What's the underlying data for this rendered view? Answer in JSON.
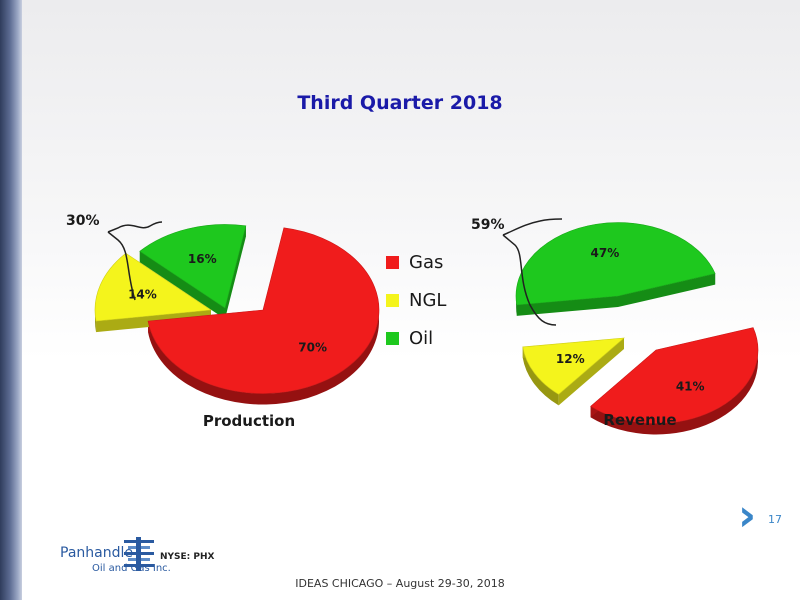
{
  "slide": {
    "title": "Third Quarter 2018",
    "page_number": "17",
    "footer": "IDEAS CHICAGO – August 29-30, 2018",
    "logo": {
      "name": "Panhandle",
      "sub": "Oil and Gas Inc.",
      "ticker": "NYSE: PHX"
    }
  },
  "colors": {
    "Gas": "#f01c1c",
    "NGL": "#f4f41c",
    "Oil": "#1ec81e",
    "title": "#1a1aa8",
    "accent": "#3a86c8"
  },
  "legend": [
    {
      "label": "Gas",
      "color": "#f01c1c"
    },
    {
      "label": "NGL",
      "color": "#f4f41c"
    },
    {
      "label": "Oil",
      "color": "#1ec81e"
    }
  ],
  "chart_data": [
    {
      "type": "pie",
      "title": "Production",
      "slices": [
        {
          "label": "Gas",
          "value": 70,
          "text": "70%"
        },
        {
          "label": "NGL",
          "value": 14,
          "text": "14%"
        },
        {
          "label": "Oil",
          "value": 16,
          "text": "16%"
        }
      ],
      "bracket_label": "30%"
    },
    {
      "type": "pie",
      "title": "Revenue",
      "slices": [
        {
          "label": "Gas",
          "value": 41,
          "text": "41%"
        },
        {
          "label": "NGL",
          "value": 12,
          "text": "12%"
        },
        {
          "label": "Oil",
          "value": 47,
          "text": "47%"
        }
      ],
      "bracket_label": "59%"
    }
  ]
}
